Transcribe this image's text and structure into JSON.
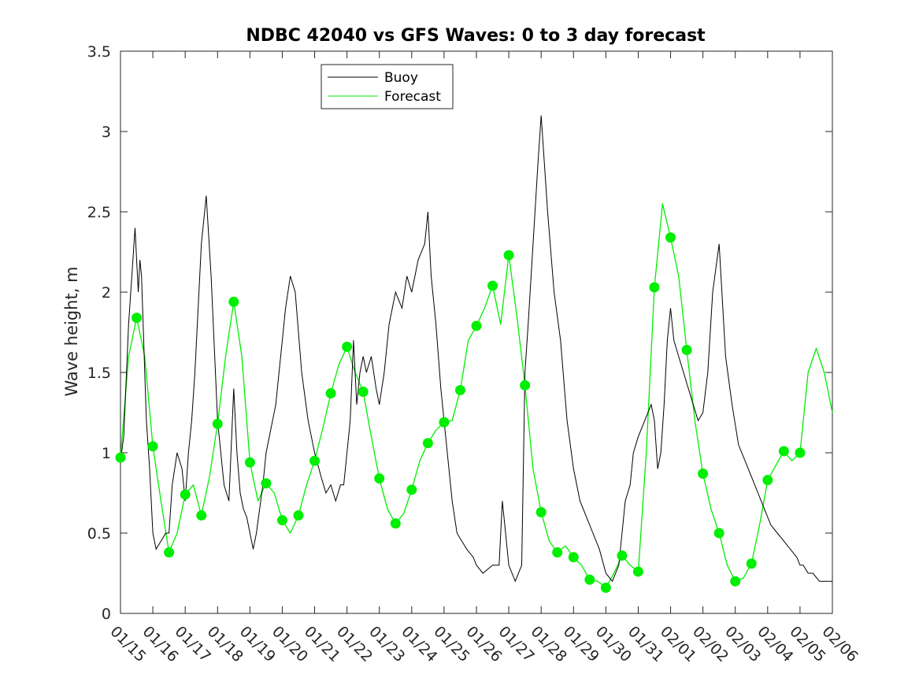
{
  "chart_data": {
    "type": "line",
    "title": "NDBC 42040 vs GFS Waves: 0 to 3 day forecast",
    "xlabel": "",
    "ylabel": "Wave height, m",
    "ylim": [
      0,
      3.5
    ],
    "xlim": [
      0,
      22
    ],
    "yticks": [
      0,
      0.5,
      1,
      1.5,
      2,
      2.5,
      3,
      3.5
    ],
    "ytick_labels": [
      "0",
      "0.5",
      "1",
      "1.5",
      "2",
      "2.5",
      "3",
      "3.5"
    ],
    "xtick_labels": [
      "01/15",
      "01/16",
      "01/17",
      "01/18",
      "01/19",
      "01/20",
      "01/21",
      "01/22",
      "01/23",
      "01/24",
      "01/25",
      "01/26",
      "01/27",
      "01/28",
      "01/29",
      "01/30",
      "01/31",
      "02/01",
      "02/02",
      "02/03",
      "02/04",
      "02/05",
      "02/06"
    ],
    "legend": {
      "position": "top-center",
      "entries": [
        "Buoy",
        "Forecast"
      ]
    },
    "colors": {
      "buoy": "#000000",
      "forecast": "#00ee00",
      "axis": "#262626",
      "background": "#ffffff"
    },
    "buoy": {
      "name": "Buoy",
      "x": [
        0,
        0.1,
        0.25,
        0.35,
        0.45,
        0.5,
        0.55,
        0.6,
        0.65,
        0.7,
        0.75,
        0.8,
        0.9,
        1.0,
        1.1,
        1.25,
        1.4,
        1.5,
        1.6,
        1.75,
        1.9,
        2.0,
        2.1,
        2.2,
        2.3,
        2.4,
        2.5,
        2.65,
        2.8,
        3.0,
        3.2,
        3.35,
        3.5,
        3.6,
        3.7,
        3.8,
        3.9,
        4.0,
        4.1,
        4.2,
        4.4,
        4.5,
        4.6,
        4.7,
        4.8,
        4.9,
        5.0,
        5.1,
        5.25,
        5.4,
        5.6,
        5.8,
        6.0,
        6.2,
        6.35,
        6.5,
        6.65,
        6.8,
        6.9,
        7.0,
        7.1,
        7.2,
        7.3,
        7.4,
        7.5,
        7.6,
        7.75,
        7.9,
        8.0,
        8.15,
        8.3,
        8.5,
        8.7,
        8.85,
        9.0,
        9.2,
        9.4,
        9.5,
        9.6,
        9.75,
        9.9,
        10.1,
        10.25,
        10.4,
        10.55,
        10.7,
        10.9,
        11.0,
        11.2,
        11.5,
        11.7,
        11.8,
        12.0,
        12.2,
        12.4,
        12.5,
        12.6,
        12.75,
        12.9,
        13.0,
        13.2,
        13.4,
        13.6,
        13.8,
        14.0,
        14.2,
        14.4,
        14.6,
        14.8,
        15.0,
        15.2,
        15.4,
        15.5,
        15.6,
        15.75,
        15.85,
        16.0,
        16.2,
        16.4,
        16.5,
        16.6,
        16.7,
        16.8,
        16.9,
        17.0,
        17.1,
        17.25,
        17.4,
        17.55,
        17.7,
        17.85,
        18.0,
        18.15,
        18.3,
        18.5,
        18.7,
        18.9,
        19.1,
        19.3,
        19.5,
        19.7,
        19.9,
        20.1,
        20.3,
        20.5,
        20.7,
        20.9,
        21.0,
        21.1,
        21.25,
        21.4,
        21.6,
        21.8,
        22.0
      ],
      "values": [
        0.95,
        1.1,
        1.8,
        2.1,
        2.4,
        2.2,
        2.0,
        2.2,
        2.1,
        1.8,
        1.5,
        1.2,
        0.9,
        0.5,
        0.4,
        0.45,
        0.5,
        0.5,
        0.8,
        1.0,
        0.9,
        0.7,
        1.0,
        1.2,
        1.5,
        1.9,
        2.3,
        2.6,
        2.1,
        1.2,
        0.8,
        0.7,
        1.4,
        1.0,
        0.75,
        0.65,
        0.6,
        0.5,
        0.4,
        0.5,
        0.8,
        1.0,
        1.1,
        1.2,
        1.3,
        1.5,
        1.7,
        1.9,
        2.1,
        2.0,
        1.5,
        1.2,
        1.0,
        0.85,
        0.75,
        0.8,
        0.7,
        0.8,
        0.8,
        1.0,
        1.2,
        1.7,
        1.3,
        1.5,
        1.6,
        1.5,
        1.6,
        1.4,
        1.3,
        1.5,
        1.8,
        2.0,
        1.9,
        2.1,
        2.0,
        2.2,
        2.3,
        2.5,
        2.1,
        1.8,
        1.4,
        1.0,
        0.7,
        0.5,
        0.45,
        0.4,
        0.35,
        0.3,
        0.25,
        0.3,
        0.3,
        0.7,
        0.3,
        0.2,
        0.3,
        1.5,
        1.8,
        2.3,
        2.8,
        3.1,
        2.5,
        2.0,
        1.7,
        1.2,
        0.9,
        0.7,
        0.6,
        0.5,
        0.4,
        0.25,
        0.2,
        0.3,
        0.5,
        0.7,
        0.8,
        1.0,
        1.1,
        1.2,
        1.3,
        1.2,
        0.9,
        1.0,
        1.3,
        1.7,
        1.9,
        1.7,
        1.6,
        1.5,
        1.4,
        1.3,
        1.2,
        1.25,
        1.5,
        2.0,
        2.3,
        1.6,
        1.3,
        1.05,
        0.95,
        0.85,
        0.75,
        0.65,
        0.55,
        0.5,
        0.45,
        0.4,
        0.35,
        0.3,
        0.3,
        0.25,
        0.25,
        0.2,
        0.2,
        0.2
      ]
    },
    "forecast": {
      "name": "Forecast",
      "x": [
        0,
        0.25,
        0.5,
        0.75,
        1.0,
        1.25,
        1.5,
        1.75,
        2.0,
        2.25,
        2.5,
        2.75,
        3.0,
        3.25,
        3.5,
        3.75,
        4.0,
        4.25,
        4.5,
        4.75,
        5.0,
        5.25,
        5.5,
        5.75,
        6.0,
        6.25,
        6.5,
        6.75,
        7.0,
        7.25,
        7.5,
        7.75,
        8.0,
        8.25,
        8.5,
        8.75,
        9.0,
        9.25,
        9.5,
        9.75,
        10.0,
        10.25,
        10.5,
        10.75,
        11.0,
        11.25,
        11.5,
        11.75,
        12.0,
        12.25,
        12.5,
        12.75,
        13.0,
        13.25,
        13.5,
        13.75,
        14.0,
        14.25,
        14.5,
        14.75,
        15.0,
        15.25,
        15.5,
        15.75,
        16.0,
        16.25,
        16.5,
        16.75,
        17.0,
        17.25,
        17.5,
        17.75,
        18.0,
        18.25,
        18.5,
        18.75,
        19.0,
        19.25,
        19.5,
        19.75,
        20.0,
        20.25,
        20.5,
        20.75,
        21.0,
        21.25,
        21.5,
        21.75,
        22.0
      ],
      "values": [
        0.97,
        1.6,
        1.84,
        1.6,
        1.04,
        0.7,
        0.38,
        0.5,
        0.74,
        0.8,
        0.61,
        0.85,
        1.18,
        1.6,
        1.94,
        1.6,
        0.94,
        0.7,
        0.81,
        0.75,
        0.58,
        0.5,
        0.61,
        0.8,
        0.95,
        1.15,
        1.37,
        1.55,
        1.66,
        1.5,
        1.38,
        1.1,
        0.84,
        0.65,
        0.56,
        0.62,
        0.77,
        0.95,
        1.06,
        1.14,
        1.19,
        1.2,
        1.39,
        1.7,
        1.79,
        1.9,
        2.04,
        1.8,
        2.23,
        1.85,
        1.42,
        0.9,
        0.63,
        0.45,
        0.38,
        0.42,
        0.35,
        0.3,
        0.21,
        0.2,
        0.16,
        0.25,
        0.36,
        0.3,
        0.26,
        1.0,
        2.03,
        2.55,
        2.34,
        2.1,
        1.64,
        1.2,
        0.87,
        0.65,
        0.5,
        0.3,
        0.2,
        0.22,
        0.31,
        0.55,
        0.83,
        0.92,
        1.01,
        0.95,
        1.0,
        1.5,
        1.65,
        1.5,
        1.25
      ]
    },
    "forecast_markers": {
      "x": [
        0,
        0.5,
        1.0,
        1.5,
        2.0,
        2.5,
        3.0,
        3.5,
        4.0,
        4.5,
        5.0,
        5.5,
        6.0,
        6.5,
        7.0,
        7.5,
        8.0,
        8.5,
        9.0,
        9.5,
        10.0,
        10.5,
        11.0,
        11.5,
        12.0,
        12.5,
        13.0,
        13.5,
        14.0,
        14.5,
        15.0,
        15.5,
        16.0,
        16.5,
        17.0,
        17.5,
        18.0,
        18.5,
        19.0,
        19.5,
        20.0,
        20.5,
        21.0
      ],
      "values": [
        0.97,
        1.84,
        1.04,
        0.38,
        0.74,
        0.61,
        1.18,
        1.94,
        0.94,
        0.81,
        0.58,
        0.61,
        0.95,
        1.37,
        1.66,
        1.38,
        0.84,
        0.56,
        0.77,
        1.06,
        1.19,
        1.39,
        1.79,
        2.04,
        2.23,
        1.42,
        0.63,
        0.38,
        0.35,
        0.21,
        0.16,
        0.36,
        0.26,
        2.03,
        2.34,
        1.64,
        0.87,
        0.5,
        0.2,
        0.31,
        0.83,
        1.01,
        1.0
      ]
    }
  }
}
